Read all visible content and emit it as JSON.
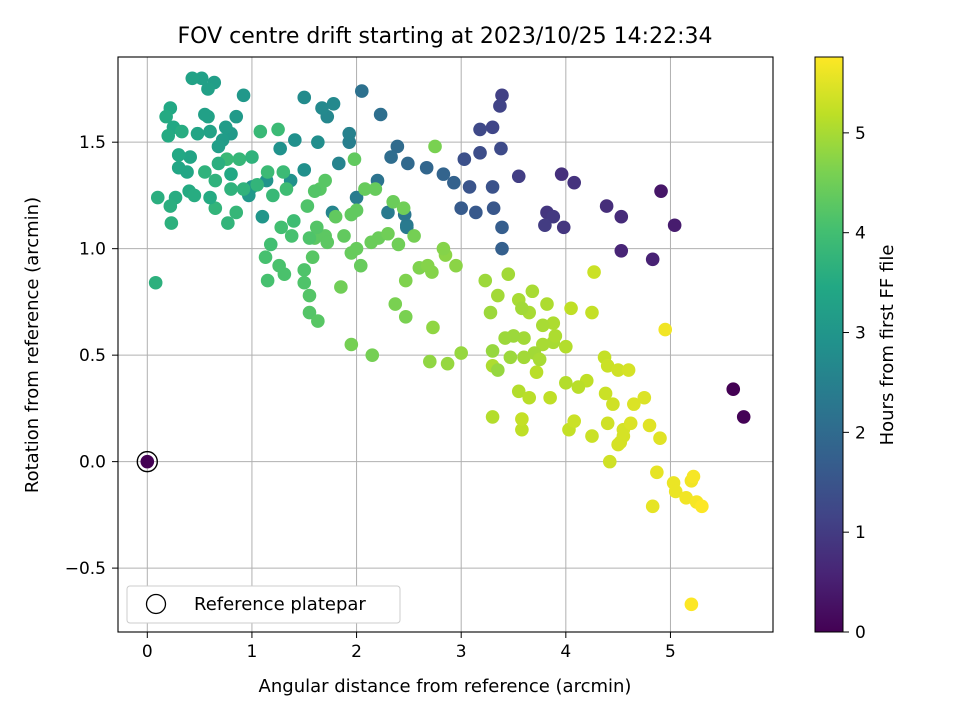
{
  "chart_data": {
    "type": "scatter",
    "title": "FOV centre drift starting at 2023/10/25 14:22:34",
    "xlabel": "Angular distance from reference (arcmin)",
    "ylabel": "Rotation from reference (arcmin)",
    "xlim": [
      -0.28,
      5.98
    ],
    "ylim": [
      -0.8,
      1.9
    ],
    "xticks": [
      0,
      1,
      2,
      3,
      4,
      5
    ],
    "yticks": [
      -0.5,
      0.0,
      0.5,
      1.0,
      1.5
    ],
    "xtick_labels": [
      "0",
      "1",
      "2",
      "3",
      "4",
      "5"
    ],
    "ytick_labels": [
      "−0.5",
      "0.0",
      "0.5",
      "1.0",
      "1.5"
    ],
    "grid": true,
    "colormap": "viridis",
    "colorbar": {
      "label": "Hours from first FF file",
      "range": [
        0,
        5.76
      ],
      "ticks": [
        0,
        1,
        2,
        3,
        4,
        5
      ],
      "tick_labels": [
        "0",
        "1",
        "2",
        "3",
        "4",
        "5"
      ]
    },
    "legend": {
      "position": "lower-left",
      "entries": [
        "Reference platepar"
      ]
    },
    "reference_point": {
      "x": 0.0,
      "y": 0.0,
      "hours": 0.0
    },
    "points": [
      {
        "x": 5.6,
        "y": 0.34,
        "h": 0.0
      },
      {
        "x": 5.7,
        "y": 0.21,
        "h": 0.03
      },
      {
        "x": 4.91,
        "y": 1.27,
        "h": 0.35
      },
      {
        "x": 5.04,
        "y": 1.11,
        "h": 0.45
      },
      {
        "x": 4.83,
        "y": 0.95,
        "h": 0.55
      },
      {
        "x": 4.53,
        "y": 0.99,
        "h": 0.6
      },
      {
        "x": 4.53,
        "y": 1.15,
        "h": 0.7
      },
      {
        "x": 4.39,
        "y": 1.2,
        "h": 0.75
      },
      {
        "x": 3.96,
        "y": 1.35,
        "h": 0.8
      },
      {
        "x": 4.08,
        "y": 1.31,
        "h": 0.85
      },
      {
        "x": 3.98,
        "y": 1.1,
        "h": 0.9
      },
      {
        "x": 3.82,
        "y": 1.17,
        "h": 0.9
      },
      {
        "x": 3.88,
        "y": 1.15,
        "h": 0.95
      },
      {
        "x": 3.8,
        "y": 1.11,
        "h": 1.0
      },
      {
        "x": 3.55,
        "y": 1.34,
        "h": 1.05
      },
      {
        "x": 3.39,
        "y": 1.72,
        "h": 1.1
      },
      {
        "x": 3.37,
        "y": 1.67,
        "h": 1.15
      },
      {
        "x": 3.3,
        "y": 1.57,
        "h": 1.2
      },
      {
        "x": 3.18,
        "y": 1.56,
        "h": 1.25
      },
      {
        "x": 3.38,
        "y": 1.47,
        "h": 1.3
      },
      {
        "x": 3.18,
        "y": 1.45,
        "h": 1.35
      },
      {
        "x": 3.03,
        "y": 1.42,
        "h": 1.4
      },
      {
        "x": 3.3,
        "y": 1.29,
        "h": 1.45
      },
      {
        "x": 3.08,
        "y": 1.29,
        "h": 1.5
      },
      {
        "x": 3.31,
        "y": 1.19,
        "h": 1.55
      },
      {
        "x": 3.14,
        "y": 1.17,
        "h": 1.6
      },
      {
        "x": 3.0,
        "y": 1.19,
        "h": 1.65
      },
      {
        "x": 3.39,
        "y": 1.1,
        "h": 1.7
      },
      {
        "x": 3.39,
        "y": 1.0,
        "h": 1.75
      },
      {
        "x": 2.93,
        "y": 1.31,
        "h": 1.8
      },
      {
        "x": 2.83,
        "y": 1.35,
        "h": 1.85
      },
      {
        "x": 2.67,
        "y": 1.38,
        "h": 1.9
      },
      {
        "x": 2.49,
        "y": 1.4,
        "h": 1.95
      },
      {
        "x": 2.39,
        "y": 1.48,
        "h": 2.0
      },
      {
        "x": 2.33,
        "y": 1.43,
        "h": 2.05
      },
      {
        "x": 2.23,
        "y": 1.63,
        "h": 2.1
      },
      {
        "x": 2.05,
        "y": 1.74,
        "h": 2.15
      },
      {
        "x": 2.2,
        "y": 1.32,
        "h": 2.2
      },
      {
        "x": 2.46,
        "y": 1.16,
        "h": 2.25
      },
      {
        "x": 2.48,
        "y": 1.11,
        "h": 2.3
      },
      {
        "x": 2.48,
        "y": 1.1,
        "h": 2.35
      },
      {
        "x": 2.3,
        "y": 1.17,
        "h": 2.35
      },
      {
        "x": 2.0,
        "y": 1.24,
        "h": 2.4
      },
      {
        "x": 1.93,
        "y": 1.5,
        "h": 2.45
      },
      {
        "x": 1.93,
        "y": 1.54,
        "h": 2.5
      },
      {
        "x": 1.83,
        "y": 1.4,
        "h": 2.55
      },
      {
        "x": 1.77,
        "y": 1.17,
        "h": 2.6
      },
      {
        "x": 1.72,
        "y": 1.62,
        "h": 2.65
      },
      {
        "x": 1.67,
        "y": 1.66,
        "h": 2.7
      },
      {
        "x": 1.78,
        "y": 1.68,
        "h": 2.7
      },
      {
        "x": 1.5,
        "y": 1.71,
        "h": 2.75
      },
      {
        "x": 1.63,
        "y": 1.5,
        "h": 2.8
      },
      {
        "x": 1.5,
        "y": 1.37,
        "h": 2.85
      },
      {
        "x": 1.41,
        "y": 1.51,
        "h": 2.85
      },
      {
        "x": 1.37,
        "y": 1.32,
        "h": 2.9
      },
      {
        "x": 1.27,
        "y": 1.47,
        "h": 2.9
      },
      {
        "x": 1.14,
        "y": 1.32,
        "h": 2.95
      },
      {
        "x": 1.1,
        "y": 1.15,
        "h": 3.0
      },
      {
        "x": 1.0,
        "y": 1.29,
        "h": 3.0
      },
      {
        "x": 0.97,
        "y": 1.25,
        "h": 3.05
      },
      {
        "x": 0.92,
        "y": 1.72,
        "h": 3.05
      },
      {
        "x": 0.85,
        "y": 1.62,
        "h": 3.1
      },
      {
        "x": 0.8,
        "y": 1.54,
        "h": 3.1
      },
      {
        "x": 0.75,
        "y": 1.57,
        "h": 3.15
      },
      {
        "x": 0.72,
        "y": 1.51,
        "h": 3.15
      },
      {
        "x": 0.68,
        "y": 1.48,
        "h": 3.2
      },
      {
        "x": 0.64,
        "y": 1.78,
        "h": 3.2
      },
      {
        "x": 0.58,
        "y": 1.75,
        "h": 3.25
      },
      {
        "x": 0.52,
        "y": 1.8,
        "h": 3.25
      },
      {
        "x": 0.43,
        "y": 1.8,
        "h": 3.3
      },
      {
        "x": 0.58,
        "y": 1.62,
        "h": 3.3
      },
      {
        "x": 0.48,
        "y": 1.54,
        "h": 3.35
      },
      {
        "x": 0.41,
        "y": 1.43,
        "h": 3.35
      },
      {
        "x": 0.38,
        "y": 1.36,
        "h": 3.4
      },
      {
        "x": 0.3,
        "y": 1.38,
        "h": 3.4
      },
      {
        "x": 0.25,
        "y": 1.57,
        "h": 3.45
      },
      {
        "x": 0.22,
        "y": 1.66,
        "h": 3.45
      },
      {
        "x": 0.18,
        "y": 1.62,
        "h": 3.5
      },
      {
        "x": 0.2,
        "y": 1.53,
        "h": 3.5
      },
      {
        "x": 0.33,
        "y": 1.55,
        "h": 3.55
      },
      {
        "x": 0.27,
        "y": 1.24,
        "h": 3.55
      },
      {
        "x": 0.22,
        "y": 1.2,
        "h": 3.6
      },
      {
        "x": 0.1,
        "y": 1.24,
        "h": 3.6
      },
      {
        "x": 0.08,
        "y": 0.84,
        "h": 3.65
      },
      {
        "x": 0.23,
        "y": 1.12,
        "h": 3.65
      },
      {
        "x": 0.55,
        "y": 1.36,
        "h": 3.7
      },
      {
        "x": 0.65,
        "y": 1.32,
        "h": 3.7
      },
      {
        "x": 0.65,
        "y": 1.19,
        "h": 3.75
      },
      {
        "x": 0.77,
        "y": 1.12,
        "h": 3.75
      },
      {
        "x": 0.85,
        "y": 1.17,
        "h": 3.8
      },
      {
        "x": 0.88,
        "y": 1.42,
        "h": 3.8
      },
      {
        "x": 0.76,
        "y": 1.42,
        "h": 3.85
      },
      {
        "x": 1.08,
        "y": 1.55,
        "h": 3.85
      },
      {
        "x": 1.15,
        "y": 1.36,
        "h": 3.9
      },
      {
        "x": 1.25,
        "y": 1.56,
        "h": 3.9
      },
      {
        "x": 1.33,
        "y": 1.28,
        "h": 3.95
      },
      {
        "x": 1.4,
        "y": 1.13,
        "h": 3.95
      },
      {
        "x": 1.28,
        "y": 1.1,
        "h": 4.0
      },
      {
        "x": 1.18,
        "y": 1.02,
        "h": 4.0
      },
      {
        "x": 1.13,
        "y": 0.96,
        "h": 4.05
      },
      {
        "x": 1.15,
        "y": 0.85,
        "h": 4.05
      },
      {
        "x": 1.26,
        "y": 0.92,
        "h": 4.1
      },
      {
        "x": 1.31,
        "y": 0.88,
        "h": 4.1
      },
      {
        "x": 1.5,
        "y": 0.9,
        "h": 4.15
      },
      {
        "x": 1.5,
        "y": 0.84,
        "h": 4.15
      },
      {
        "x": 1.55,
        "y": 0.78,
        "h": 4.2
      },
      {
        "x": 1.55,
        "y": 0.7,
        "h": 4.2
      },
      {
        "x": 1.63,
        "y": 0.66,
        "h": 4.25
      },
      {
        "x": 1.58,
        "y": 0.96,
        "h": 4.25
      },
      {
        "x": 1.6,
        "y": 1.05,
        "h": 4.3
      },
      {
        "x": 1.7,
        "y": 1.06,
        "h": 4.3
      },
      {
        "x": 1.8,
        "y": 1.15,
        "h": 4.35
      },
      {
        "x": 1.88,
        "y": 1.06,
        "h": 4.35
      },
      {
        "x": 1.95,
        "y": 0.98,
        "h": 4.4
      },
      {
        "x": 2.04,
        "y": 0.92,
        "h": 4.4
      },
      {
        "x": 2.14,
        "y": 1.03,
        "h": 4.45
      },
      {
        "x": 2.21,
        "y": 1.05,
        "h": 4.45
      },
      {
        "x": 2.3,
        "y": 1.07,
        "h": 4.5
      },
      {
        "x": 1.85,
        "y": 0.82,
        "h": 4.5
      },
      {
        "x": 1.95,
        "y": 0.55,
        "h": 4.55
      },
      {
        "x": 2.15,
        "y": 0.5,
        "h": 4.55
      },
      {
        "x": 2.37,
        "y": 0.74,
        "h": 4.6
      },
      {
        "x": 2.47,
        "y": 0.68,
        "h": 4.6
      },
      {
        "x": 2.47,
        "y": 0.85,
        "h": 4.65
      },
      {
        "x": 2.6,
        "y": 0.91,
        "h": 4.65
      },
      {
        "x": 2.68,
        "y": 0.92,
        "h": 4.7
      },
      {
        "x": 2.72,
        "y": 0.89,
        "h": 4.7
      },
      {
        "x": 2.85,
        "y": 0.97,
        "h": 4.75
      },
      {
        "x": 2.95,
        "y": 0.92,
        "h": 4.75
      },
      {
        "x": 2.7,
        "y": 0.47,
        "h": 4.8
      },
      {
        "x": 2.73,
        "y": 0.63,
        "h": 4.8
      },
      {
        "x": 2.87,
        "y": 0.46,
        "h": 4.85
      },
      {
        "x": 3.0,
        "y": 0.51,
        "h": 4.85
      },
      {
        "x": 3.23,
        "y": 0.85,
        "h": 4.9
      },
      {
        "x": 3.28,
        "y": 0.7,
        "h": 4.9
      },
      {
        "x": 3.35,
        "y": 0.78,
        "h": 4.95
      },
      {
        "x": 3.45,
        "y": 0.88,
        "h": 4.95
      },
      {
        "x": 3.55,
        "y": 0.76,
        "h": 5.0
      },
      {
        "x": 3.68,
        "y": 0.8,
        "h": 5.0
      },
      {
        "x": 3.82,
        "y": 0.74,
        "h": 5.05
      },
      {
        "x": 3.3,
        "y": 0.45,
        "h": 5.05
      },
      {
        "x": 3.3,
        "y": 0.21,
        "h": 5.1
      },
      {
        "x": 3.55,
        "y": 0.33,
        "h": 5.1
      },
      {
        "x": 3.65,
        "y": 0.3,
        "h": 5.15
      },
      {
        "x": 3.72,
        "y": 0.42,
        "h": 5.15
      },
      {
        "x": 3.85,
        "y": 0.3,
        "h": 5.2
      },
      {
        "x": 3.58,
        "y": 0.15,
        "h": 5.2
      },
      {
        "x": 3.58,
        "y": 0.2,
        "h": 5.25
      },
      {
        "x": 4.03,
        "y": 0.15,
        "h": 5.25
      },
      {
        "x": 4.08,
        "y": 0.19,
        "h": 5.3
      },
      {
        "x": 4.25,
        "y": 0.12,
        "h": 5.3
      },
      {
        "x": 4.42,
        "y": 0.0,
        "h": 5.35
      },
      {
        "x": 4.4,
        "y": 0.18,
        "h": 5.35
      },
      {
        "x": 4.52,
        "y": 0.09,
        "h": 5.4
      },
      {
        "x": 4.55,
        "y": 0.12,
        "h": 5.4
      },
      {
        "x": 4.65,
        "y": 0.27,
        "h": 5.45
      },
      {
        "x": 4.75,
        "y": 0.3,
        "h": 5.45
      },
      {
        "x": 4.8,
        "y": 0.17,
        "h": 5.5
      },
      {
        "x": 4.9,
        "y": 0.11,
        "h": 5.5
      },
      {
        "x": 4.83,
        "y": -0.21,
        "h": 5.55
      },
      {
        "x": 4.87,
        "y": -0.05,
        "h": 5.55
      },
      {
        "x": 5.03,
        "y": -0.1,
        "h": 5.6
      },
      {
        "x": 5.05,
        "y": -0.14,
        "h": 5.6
      },
      {
        "x": 5.15,
        "y": -0.17,
        "h": 5.65
      },
      {
        "x": 5.2,
        "y": -0.09,
        "h": 5.65
      },
      {
        "x": 5.22,
        "y": -0.07,
        "h": 5.7
      },
      {
        "x": 5.25,
        "y": -0.19,
        "h": 5.7
      },
      {
        "x": 5.3,
        "y": -0.21,
        "h": 5.75
      },
      {
        "x": 5.2,
        "y": -0.67,
        "h": 5.75
      },
      {
        "x": 4.95,
        "y": 0.62,
        "h": 5.65
      },
      {
        "x": 4.27,
        "y": 0.89,
        "h": 5.3
      },
      {
        "x": 4.25,
        "y": 0.7,
        "h": 5.25
      },
      {
        "x": 4.05,
        "y": 0.72,
        "h": 5.2
      },
      {
        "x": 4.37,
        "y": 0.49,
        "h": 5.25
      },
      {
        "x": 4.4,
        "y": 0.45,
        "h": 5.3
      },
      {
        "x": 4.5,
        "y": 0.43,
        "h": 5.35
      },
      {
        "x": 4.6,
        "y": 0.43,
        "h": 5.4
      },
      {
        "x": 4.38,
        "y": 0.32,
        "h": 5.3
      },
      {
        "x": 4.45,
        "y": 0.27,
        "h": 5.35
      },
      {
        "x": 4.2,
        "y": 0.38,
        "h": 5.2
      },
      {
        "x": 4.12,
        "y": 0.35,
        "h": 5.15
      },
      {
        "x": 4.0,
        "y": 0.37,
        "h": 5.1
      },
      {
        "x": 4.0,
        "y": 0.54,
        "h": 5.1
      },
      {
        "x": 3.88,
        "y": 0.65,
        "h": 5.05
      },
      {
        "x": 3.88,
        "y": 0.56,
        "h": 5.0
      },
      {
        "x": 3.78,
        "y": 0.55,
        "h": 5.0
      },
      {
        "x": 3.7,
        "y": 0.51,
        "h": 4.95
      },
      {
        "x": 3.6,
        "y": 0.58,
        "h": 4.95
      },
      {
        "x": 3.5,
        "y": 0.59,
        "h": 4.9
      },
      {
        "x": 3.42,
        "y": 0.58,
        "h": 4.9
      },
      {
        "x": 3.3,
        "y": 0.52,
        "h": 4.85
      },
      {
        "x": 3.35,
        "y": 0.43,
        "h": 4.85
      },
      {
        "x": 3.47,
        "y": 0.49,
        "h": 4.9
      },
      {
        "x": 3.6,
        "y": 0.49,
        "h": 4.95
      },
      {
        "x": 3.75,
        "y": 0.48,
        "h": 5.0
      },
      {
        "x": 4.55,
        "y": 0.15,
        "h": 5.4
      },
      {
        "x": 4.62,
        "y": 0.18,
        "h": 5.45
      },
      {
        "x": 4.5,
        "y": 0.08,
        "h": 5.4
      },
      {
        "x": 2.35,
        "y": 1.22,
        "h": 4.45
      },
      {
        "x": 2.45,
        "y": 1.19,
        "h": 4.5
      },
      {
        "x": 2.08,
        "y": 1.28,
        "h": 4.4
      },
      {
        "x": 2.18,
        "y": 1.28,
        "h": 4.4
      },
      {
        "x": 2.75,
        "y": 1.48,
        "h": 4.6
      },
      {
        "x": 2.4,
        "y": 1.02,
        "h": 4.5
      },
      {
        "x": 2.55,
        "y": 1.06,
        "h": 4.55
      },
      {
        "x": 2.83,
        "y": 1.0,
        "h": 4.7
      },
      {
        "x": 1.98,
        "y": 1.42,
        "h": 4.35
      },
      {
        "x": 1.7,
        "y": 1.32,
        "h": 4.25
      },
      {
        "x": 1.65,
        "y": 1.28,
        "h": 4.25
      },
      {
        "x": 1.6,
        "y": 1.27,
        "h": 4.2
      },
      {
        "x": 1.38,
        "y": 1.06,
        "h": 4.05
      },
      {
        "x": 1.55,
        "y": 1.05,
        "h": 4.15
      },
      {
        "x": 1.95,
        "y": 1.16,
        "h": 4.35
      },
      {
        "x": 2.0,
        "y": 1.0,
        "h": 4.4
      },
      {
        "x": 2.0,
        "y": 1.18,
        "h": 4.35
      },
      {
        "x": 1.53,
        "y": 1.2,
        "h": 4.15
      },
      {
        "x": 1.62,
        "y": 1.1,
        "h": 4.2
      },
      {
        "x": 1.72,
        "y": 1.03,
        "h": 4.3
      },
      {
        "x": 3.65,
        "y": 0.7,
        "h": 5.0
      },
      {
        "x": 3.78,
        "y": 0.64,
        "h": 5.0
      },
      {
        "x": 3.9,
        "y": 0.59,
        "h": 5.05
      },
      {
        "x": 3.58,
        "y": 0.72,
        "h": 4.95
      },
      {
        "x": 0.55,
        "y": 1.63,
        "h": 3.25
      },
      {
        "x": 0.6,
        "y": 1.55,
        "h": 3.3
      },
      {
        "x": 0.8,
        "y": 1.35,
        "h": 3.45
      },
      {
        "x": 0.6,
        "y": 1.24,
        "h": 3.5
      },
      {
        "x": 0.4,
        "y": 1.27,
        "h": 3.5
      },
      {
        "x": 0.3,
        "y": 1.44,
        "h": 3.45
      },
      {
        "x": 0.45,
        "y": 1.25,
        "h": 3.55
      },
      {
        "x": 0.68,
        "y": 1.4,
        "h": 3.6
      },
      {
        "x": 1.0,
        "y": 1.43,
        "h": 3.7
      },
      {
        "x": 1.05,
        "y": 1.3,
        "h": 3.75
      },
      {
        "x": 1.2,
        "y": 1.25,
        "h": 3.85
      },
      {
        "x": 1.3,
        "y": 1.36,
        "h": 3.9
      },
      {
        "x": 0.92,
        "y": 1.28,
        "h": 3.7
      },
      {
        "x": 0.8,
        "y": 1.28,
        "h": 3.7
      }
    ]
  }
}
